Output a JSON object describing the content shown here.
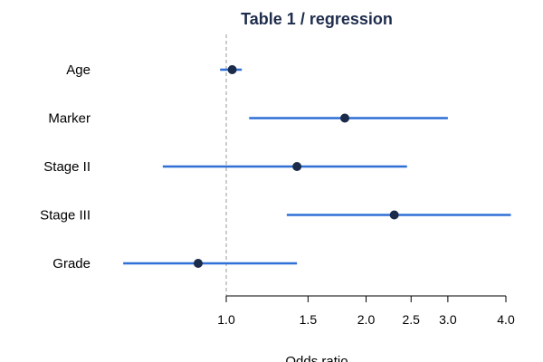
{
  "chart_data": {
    "type": "forest",
    "title": "Table 1 / regression",
    "xlabel": "Odds ratio",
    "x_scale": "log",
    "x_ticks": [
      1.0,
      1.5,
      2.0,
      2.5,
      3.0,
      4.0
    ],
    "x_tick_labels": [
      "1.0",
      "1.5",
      "2.0",
      "2.5",
      "3.0",
      "4.0"
    ],
    "reference_line": 1.0,
    "rows": [
      {
        "label": "Age",
        "estimate": 1.03,
        "lower": 0.97,
        "upper": 1.08
      },
      {
        "label": "Marker",
        "estimate": 1.8,
        "lower": 1.12,
        "upper": 3.0
      },
      {
        "label": "Stage II",
        "estimate": 1.42,
        "lower": 0.73,
        "upper": 2.45
      },
      {
        "label": "Stage III",
        "estimate": 2.3,
        "lower": 1.35,
        "upper": 4.1
      },
      {
        "label": "Grade",
        "estimate": 0.87,
        "lower": 0.6,
        "upper": 1.42
      }
    ],
    "colors": {
      "title": "#1f2d4d",
      "ci_line": "#2f6fd6",
      "point": "#1b2b4b",
      "reference": "#999999",
      "axis": "#000000"
    }
  }
}
